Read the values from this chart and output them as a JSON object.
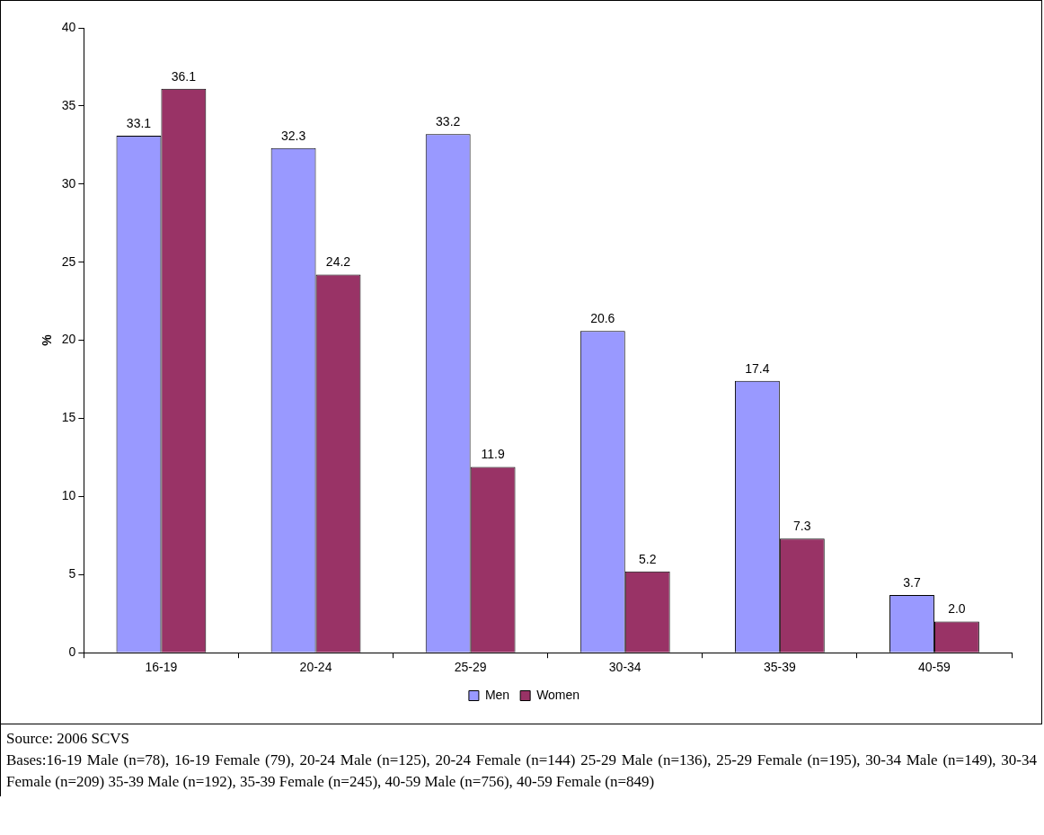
{
  "chart_data": {
    "type": "bar",
    "ylabel": "%",
    "categories": [
      "16-19",
      "20-24",
      "25-29",
      "30-34",
      "35-39",
      "40-59"
    ],
    "series": [
      {
        "name": "Men",
        "color": "#9999ff",
        "values": [
          33.1,
          32.3,
          33.2,
          20.6,
          17.4,
          3.7
        ],
        "value_labels": [
          "33.1",
          "32.3",
          "33.2",
          "20.6",
          "17.4",
          "3.7"
        ]
      },
      {
        "name": "Women",
        "color": "#993366",
        "values": [
          36.1,
          24.2,
          11.9,
          5.2,
          7.3,
          2.0
        ],
        "value_labels": [
          "36.1",
          "24.2",
          "11.9",
          "5.2",
          "7.3",
          "2.0"
        ]
      }
    ],
    "ylim": [
      0,
      40
    ],
    "yticks": [
      0,
      5,
      10,
      15,
      20,
      25,
      30,
      35,
      40
    ],
    "grid": false,
    "legend": "bottom",
    "annotations": [
      "Source: 2006 SCVS",
      "Bases:16-19 Male (n=78), 16-19 Female (79), 20-24 Male (n=125), 20-24 Female (n=144) 25-29 Male (n=136), 25-29 Female (n=195), 30-34 Male (n=149), 30-34 Female (n=209) 35-39 Male (n=192), 35-39 Female (n=245), 40-59 Male  (n=756), 40-59 Female (n=849)"
    ]
  }
}
